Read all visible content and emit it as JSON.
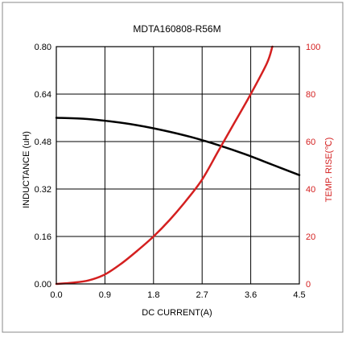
{
  "chart_data": {
    "type": "line",
    "title": "MDTA160808-R56M",
    "xlabel": "DC CURRENT(A)",
    "ylabel": "INDUCTANCE (uH)",
    "y2label": "TEMP. RISE(℃)",
    "xlim": [
      0,
      4.5
    ],
    "ylim": [
      0,
      0.8
    ],
    "y2lim": [
      0,
      100
    ],
    "x_ticks": [
      "0.0",
      "0.9",
      "1.8",
      "2.7",
      "3.6",
      "4.5"
    ],
    "y_ticks": [
      "0.00",
      "0.16",
      "0.32",
      "0.48",
      "0.64",
      "0.80"
    ],
    "y2_ticks": [
      "0",
      "20",
      "40",
      "60",
      "80",
      "100"
    ],
    "grid": true,
    "series": [
      {
        "axis": "left",
        "color": "#000000",
        "x": [
          0,
          0.5,
          1.0,
          1.5,
          2.0,
          2.5,
          3.0,
          3.5,
          4.0,
          4.5
        ],
        "y": [
          0.56,
          0.557,
          0.548,
          0.535,
          0.517,
          0.495,
          0.468,
          0.437,
          0.402,
          0.367
        ]
      },
      {
        "axis": "right",
        "color": "#d42020",
        "x": [
          0,
          0.3,
          0.6,
          0.9,
          1.2,
          1.5,
          1.8,
          2.1,
          2.4,
          2.7,
          3.0,
          3.3,
          3.6,
          3.9,
          4.0
        ],
        "y": [
          0,
          0.5,
          1.5,
          4,
          8.5,
          14,
          20,
          27,
          35,
          44,
          56,
          68,
          80,
          93,
          100
        ]
      }
    ]
  }
}
